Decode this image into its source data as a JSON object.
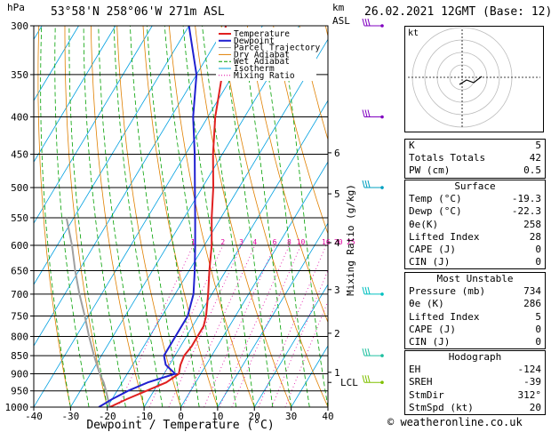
{
  "header": {
    "hpa_label": "hPa",
    "location": "53°58'N 258°06'W 271m ASL",
    "km_label": "km",
    "asl_label": "ASL",
    "datetime": "26.02.2021 12GMT (Base: 12)"
  },
  "chart_data": {
    "type": "skew-t",
    "xlabel": "Dewpoint / Temperature (°C)",
    "ylabel_right": "Mixing Ratio (g/kg)",
    "xlim": [
      -40,
      40
    ],
    "pressure_range": [
      300,
      1000
    ],
    "pressure_ticks": [
      300,
      350,
      400,
      450,
      500,
      550,
      600,
      650,
      700,
      750,
      800,
      850,
      900,
      950,
      1000
    ],
    "x_ticks": [
      -40,
      -30,
      -20,
      -10,
      0,
      10,
      20,
      30,
      40
    ],
    "height_ticks_km": [
      {
        "label": "6",
        "p": 448
      },
      {
        "label": "5",
        "p": 510
      },
      {
        "label": "4",
        "p": 595
      },
      {
        "label": "3",
        "p": 690
      },
      {
        "label": "2",
        "p": 792
      },
      {
        "label": "1",
        "p": 896
      }
    ],
    "lcl": {
      "label": "LCL",
      "p": 925
    },
    "mixing_ratio_labels": [
      "1",
      "2",
      "3",
      "4",
      "6",
      "8",
      "10",
      "16",
      "20",
      "25"
    ],
    "mixing_ratio_values": [
      1,
      2,
      3,
      4,
      6,
      8,
      10,
      16,
      20,
      25
    ],
    "legend": [
      "Temperature",
      "Dewpoint",
      "Parcel Trajectory",
      "Dry Adiabat",
      "Wet Adiabat",
      "Isotherm",
      "Mixing Ratio"
    ],
    "legend_colors": [
      "#e02020",
      "#2020d0",
      "#909090",
      "#e08000",
      "#00a000",
      "#00a0e0",
      "#e000a0"
    ],
    "temperature": [
      {
        "p": 1000,
        "t": -19.3
      },
      {
        "p": 975,
        "t": -16
      },
      {
        "p": 950,
        "t": -12
      },
      {
        "p": 925,
        "t": -8
      },
      {
        "p": 900,
        "t": -6
      },
      {
        "p": 875,
        "t": -7
      },
      {
        "p": 850,
        "t": -7.5
      },
      {
        "p": 825,
        "t": -7
      },
      {
        "p": 800,
        "t": -7
      },
      {
        "p": 775,
        "t": -7
      },
      {
        "p": 750,
        "t": -8
      },
      {
        "p": 700,
        "t": -11
      },
      {
        "p": 650,
        "t": -14.5
      },
      {
        "p": 600,
        "t": -18
      },
      {
        "p": 550,
        "t": -22.5
      },
      {
        "p": 500,
        "t": -27
      },
      {
        "p": 450,
        "t": -32.5
      },
      {
        "p": 400,
        "t": -38
      },
      {
        "p": 350,
        "t": -43
      },
      {
        "p": 300,
        "t": -50
      }
    ],
    "dewpoint": [
      {
        "p": 1000,
        "t": -22.3
      },
      {
        "p": 975,
        "t": -20
      },
      {
        "p": 950,
        "t": -17
      },
      {
        "p": 925,
        "t": -13
      },
      {
        "p": 900,
        "t": -7
      },
      {
        "p": 875,
        "t": -11
      },
      {
        "p": 850,
        "t": -13
      },
      {
        "p": 800,
        "t": -13
      },
      {
        "p": 750,
        "t": -13
      },
      {
        "p": 700,
        "t": -15
      },
      {
        "p": 650,
        "t": -18.5
      },
      {
        "p": 600,
        "t": -22.5
      },
      {
        "p": 550,
        "t": -27
      },
      {
        "p": 500,
        "t": -32
      },
      {
        "p": 450,
        "t": -37.5
      },
      {
        "p": 400,
        "t": -44
      },
      {
        "p": 350,
        "t": -50
      },
      {
        "p": 300,
        "t": -60
      }
    ],
    "parcel": [
      {
        "p": 1000,
        "t": -19.3
      },
      {
        "p": 950,
        "t": -23
      },
      {
        "p": 925,
        "t": -25
      },
      {
        "p": 900,
        "t": -27.5
      },
      {
        "p": 850,
        "t": -32
      },
      {
        "p": 800,
        "t": -36.5
      },
      {
        "p": 750,
        "t": -41
      },
      {
        "p": 700,
        "t": -46
      },
      {
        "p": 650,
        "t": -51
      },
      {
        "p": 600,
        "t": -56
      },
      {
        "p": 550,
        "t": -62
      }
    ],
    "wind_barb_pressures": [
      300,
      400,
      500,
      700,
      850,
      925
    ]
  },
  "hodograph": {
    "label": "kt"
  },
  "indices": [
    {
      "label": "K",
      "value": "5"
    },
    {
      "label": "Totals Totals",
      "value": "42"
    },
    {
      "label": "PW (cm)",
      "value": "0.5"
    }
  ],
  "surface": {
    "title": "Surface",
    "rows": [
      {
        "label": "Temp (°C)",
        "value": "-19.3"
      },
      {
        "label": "Dewp (°C)",
        "value": "-22.3"
      },
      {
        "label": "θe(K)",
        "value": "258"
      },
      {
        "label": "Lifted Index",
        "value": "28"
      },
      {
        "label": "CAPE (J)",
        "value": "0"
      },
      {
        "label": "CIN (J)",
        "value": "0"
      }
    ]
  },
  "unstable": {
    "title": "Most Unstable",
    "rows": [
      {
        "label": "Pressure (mb)",
        "value": "734"
      },
      {
        "label": "θe (K)",
        "value": "286"
      },
      {
        "label": "Lifted Index",
        "value": "5"
      },
      {
        "label": "CAPE (J)",
        "value": "0"
      },
      {
        "label": "CIN (J)",
        "value": "0"
      }
    ]
  },
  "hodo_table": {
    "title": "Hodograph",
    "rows": [
      {
        "label": "EH",
        "value": "-124"
      },
      {
        "label": "SREH",
        "value": "-39"
      },
      {
        "label": "StmDir",
        "value": "312°"
      },
      {
        "label": "StmSpd (kt)",
        "value": "20"
      }
    ]
  },
  "copyright": "© weatheronline.co.uk"
}
